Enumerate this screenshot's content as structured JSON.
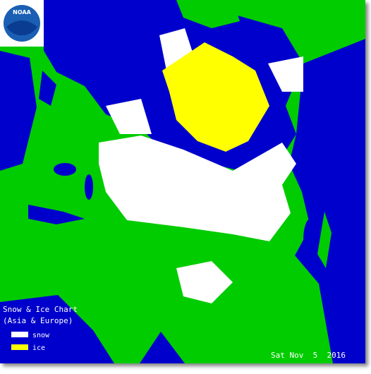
{
  "logo": {
    "text": "NOAA"
  },
  "legend": {
    "title": "Snow & Ice Chart",
    "subtitle": "(Asia & Europe)",
    "items": [
      {
        "label": "snow",
        "color": "#ffffff"
      },
      {
        "label": "ice",
        "color": "#ffff00"
      }
    ]
  },
  "date": "Sat Nov  5  2016"
}
